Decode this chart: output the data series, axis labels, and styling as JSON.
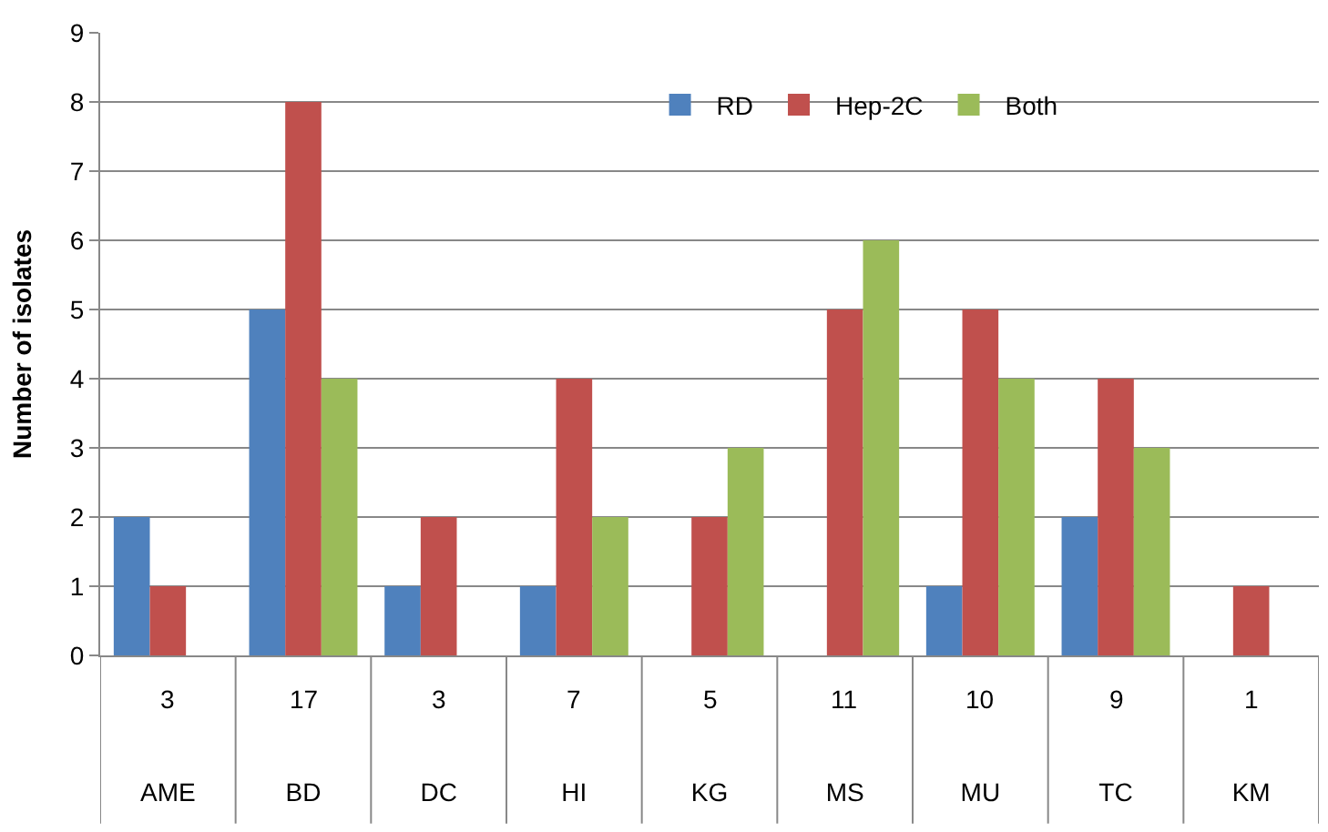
{
  "chart_data": {
    "type": "bar",
    "ylabel": "Number of isolates",
    "categories": [
      "AME",
      "BD",
      "DC",
      "HI",
      "KG",
      "MS",
      "MU",
      "TC",
      "KM"
    ],
    "series": [
      {
        "name": "RD",
        "color": "#4f81bd",
        "values": [
          2,
          5,
          1,
          1,
          0,
          0,
          1,
          2,
          0
        ]
      },
      {
        "name": "Hep-2C",
        "color": "#c0504d",
        "values": [
          1,
          8,
          2,
          4,
          2,
          5,
          5,
          4,
          1
        ]
      },
      {
        "name": "Both",
        "color": "#9bbb59",
        "values": [
          0,
          4,
          0,
          2,
          3,
          6,
          4,
          3,
          0
        ]
      }
    ],
    "totals": [
      "3",
      "17",
      "3",
      "7",
      "5",
      "11",
      "10",
      "9",
      "1"
    ],
    "ylim": [
      0,
      9
    ],
    "yticks": [
      0,
      1,
      2,
      3,
      4,
      5,
      6,
      7,
      8,
      9
    ],
    "grid": "y",
    "legend": "top"
  }
}
